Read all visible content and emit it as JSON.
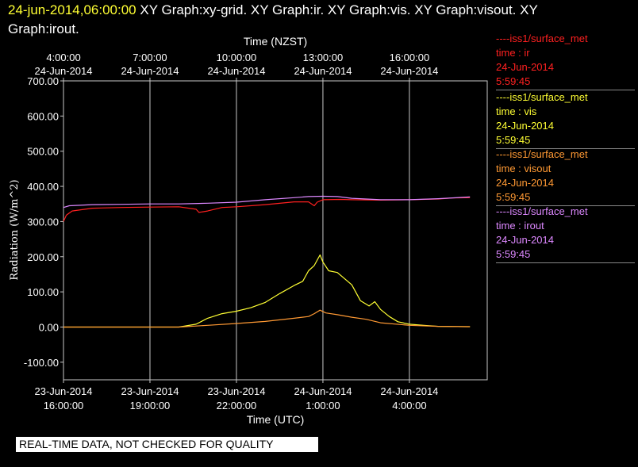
{
  "header": {
    "timestamp": "24-jun-2014,06:00:00",
    "graphs_line1": "XY Graph:xy-grid.  XY Graph:ir.  XY Graph:vis.  XY Graph:visout.  XY",
    "graphs_line2": "Graph:irout."
  },
  "legend": [
    {
      "line1": "----iss1/surface_met",
      "line2": "time : ir",
      "line3": "24-Jun-2014",
      "line4": "5:59:45",
      "color": "#ff2020"
    },
    {
      "line1": "----iss1/surface_met",
      "line2": "time : vis",
      "line3": "24-Jun-2014",
      "line4": "5:59:45",
      "color": "#ffff33"
    },
    {
      "line1": "----iss1/surface_met",
      "line2": "time : visout",
      "line3": "24-Jun-2014",
      "line4": "5:59:45",
      "color": "#ff9933"
    },
    {
      "line1": "----iss1/surface_met",
      "line2": "time : irout",
      "line3": "24-Jun-2014",
      "line4": "5:59:45",
      "color": "#dd88ff"
    }
  ],
  "disclaimer": "REAL-TIME DATA, NOT CHECKED FOR QUALITY",
  "chart_data": {
    "type": "line",
    "xlabel": "Time (UTC)",
    "x2label": "Time (NZST)",
    "ylabel": "Radiation  (W/m^2)",
    "x_unit": "hours since 23-Jun-2014 16:00 UTC",
    "xlim": [
      0,
      14.7
    ],
    "ylim": [
      -150,
      700
    ],
    "grid": true,
    "yticks": [
      -100,
      0,
      100,
      200,
      300,
      400,
      500,
      600,
      700
    ],
    "ytick_labels": [
      "-100.00",
      "0.00",
      "100.00",
      "200.00",
      "300.00",
      "400.00",
      "500.00",
      "600.00",
      "700.00"
    ],
    "bottom_ticks": [
      {
        "x": 0,
        "date": "23-Jun-2014",
        "time": "16:00:00"
      },
      {
        "x": 3,
        "date": "23-Jun-2014",
        "time": "19:00:00"
      },
      {
        "x": 6,
        "date": "23-Jun-2014",
        "time": "22:00:00"
      },
      {
        "x": 9,
        "date": "24-Jun-2014",
        "time": "1:00:00"
      },
      {
        "x": 12,
        "date": "24-Jun-2014",
        "time": "4:00:00"
      }
    ],
    "top_ticks": [
      {
        "x": 0,
        "time": "4:00:00",
        "date": "24-Jun-2014"
      },
      {
        "x": 3,
        "time": "7:00:00",
        "date": "24-Jun-2014"
      },
      {
        "x": 6,
        "time": "10:00:00",
        "date": "24-Jun-2014"
      },
      {
        "x": 9,
        "time": "13:00:00",
        "date": "24-Jun-2014"
      },
      {
        "x": 12,
        "time": "16:00:00",
        "date": "24-Jun-2014"
      }
    ],
    "series": [
      {
        "name": "ir",
        "color": "#ff2020",
        "points": [
          [
            0,
            300
          ],
          [
            0.1,
            318
          ],
          [
            0.3,
            330
          ],
          [
            1,
            338
          ],
          [
            2,
            340
          ],
          [
            3,
            341
          ],
          [
            4,
            342
          ],
          [
            4.6,
            335
          ],
          [
            4.7,
            326
          ],
          [
            5,
            330
          ],
          [
            5.5,
            340
          ],
          [
            6,
            342
          ],
          [
            7,
            348
          ],
          [
            8,
            356
          ],
          [
            8.5,
            356
          ],
          [
            8.7,
            345
          ],
          [
            8.8,
            355
          ],
          [
            9,
            362
          ],
          [
            9.6,
            363
          ],
          [
            10,
            362
          ],
          [
            11,
            361
          ],
          [
            12,
            362
          ],
          [
            13,
            364
          ],
          [
            13.5,
            367
          ],
          [
            14.1,
            368
          ]
        ]
      },
      {
        "name": "vis",
        "color": "#ffff33",
        "points": [
          [
            0,
            0
          ],
          [
            4,
            0
          ],
          [
            4.6,
            8
          ],
          [
            5,
            25
          ],
          [
            5.5,
            38
          ],
          [
            6,
            45
          ],
          [
            6.5,
            55
          ],
          [
            7,
            70
          ],
          [
            7.5,
            95
          ],
          [
            8,
            118
          ],
          [
            8.3,
            130
          ],
          [
            8.5,
            160
          ],
          [
            8.7,
            175
          ],
          [
            8.9,
            205
          ],
          [
            9,
            185
          ],
          [
            9.2,
            160
          ],
          [
            9.5,
            155
          ],
          [
            10,
            120
          ],
          [
            10.3,
            75
          ],
          [
            10.6,
            60
          ],
          [
            10.8,
            72
          ],
          [
            11,
            50
          ],
          [
            11.3,
            30
          ],
          [
            11.6,
            15
          ],
          [
            12,
            8
          ],
          [
            12.5,
            5
          ],
          [
            13,
            2
          ],
          [
            14,
            1
          ],
          [
            14.1,
            1
          ]
        ]
      },
      {
        "name": "visout",
        "color": "#ff9933",
        "points": [
          [
            0,
            0
          ],
          [
            4,
            0
          ],
          [
            5,
            5
          ],
          [
            6,
            10
          ],
          [
            7,
            16
          ],
          [
            8,
            25
          ],
          [
            8.5,
            30
          ],
          [
            8.7,
            38
          ],
          [
            8.9,
            48
          ],
          [
            9.1,
            40
          ],
          [
            9.5,
            35
          ],
          [
            10,
            28
          ],
          [
            10.5,
            22
          ],
          [
            11,
            12
          ],
          [
            12,
            5
          ],
          [
            13,
            2
          ],
          [
            14,
            1
          ],
          [
            14.1,
            1
          ]
        ]
      },
      {
        "name": "irout",
        "color": "#dd88ff",
        "points": [
          [
            0,
            340
          ],
          [
            0.2,
            345
          ],
          [
            1,
            348
          ],
          [
            2,
            349
          ],
          [
            3,
            350
          ],
          [
            4,
            350
          ],
          [
            5,
            352
          ],
          [
            6,
            355
          ],
          [
            7,
            362
          ],
          [
            8,
            368
          ],
          [
            8.5,
            371
          ],
          [
            9,
            372
          ],
          [
            9.5,
            371
          ],
          [
            10,
            366
          ],
          [
            11,
            362
          ],
          [
            12,
            362
          ],
          [
            13,
            365
          ],
          [
            14.1,
            370
          ]
        ]
      }
    ]
  }
}
